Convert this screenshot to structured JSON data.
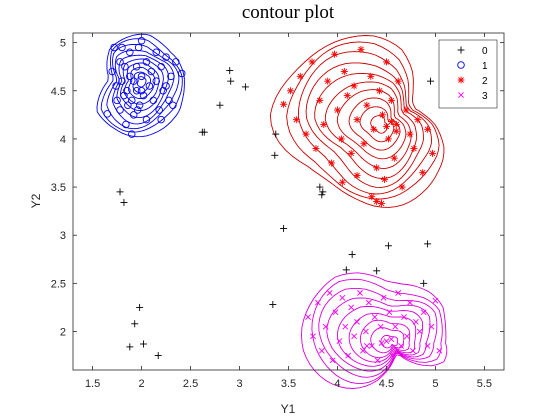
{
  "chart_data": {
    "type": "scatter",
    "title": "contour plot",
    "xlabel": "Y1",
    "ylabel": "Y2",
    "xlim": [
      1.3,
      5.7
    ],
    "ylim": [
      1.6,
      5.1
    ],
    "xticks": [
      1.5,
      2,
      2.5,
      3,
      3.5,
      4,
      4.5,
      5,
      5.5
    ],
    "yticks": [
      2,
      2.5,
      3,
      3.5,
      4,
      4.5,
      5
    ],
    "xtick_labels": [
      "1.5",
      "2",
      "2.5",
      "3",
      "3.5",
      "4",
      "4.5",
      "5",
      "5.5"
    ],
    "ytick_labels": [
      "2",
      "2.5",
      "3",
      "3.5",
      "4",
      "4.5",
      "5"
    ],
    "grid": false,
    "legend_position": "top-right",
    "series": [
      {
        "name": "0",
        "marker": "plus",
        "color": "#000000",
        "x": [
          1.78,
          1.82,
          1.88,
          1.93,
          1.98,
          2.02,
          2.17,
          2.62,
          2.64,
          2.8,
          2.9,
          2.91,
          3.06,
          3.34,
          3.36,
          3.37,
          3.45,
          3.82,
          3.84,
          3.85,
          4.09,
          4.15,
          4.4,
          4.52,
          4.88,
          4.92,
          4.95
        ],
        "y": [
          3.45,
          3.34,
          1.84,
          2.08,
          2.25,
          1.87,
          1.75,
          4.07,
          4.07,
          4.35,
          4.71,
          4.6,
          4.54,
          2.28,
          3.83,
          4.05,
          3.07,
          3.5,
          3.42,
          3.45,
          2.64,
          2.8,
          2.63,
          2.89,
          2.5,
          2.91,
          4.6
        ]
      },
      {
        "name": "1",
        "marker": "circle",
        "color": "#0000ff",
        "x": [
          1.65,
          1.7,
          1.72,
          1.74,
          1.75,
          1.78,
          1.78,
          1.8,
          1.8,
          1.82,
          1.83,
          1.85,
          1.86,
          1.88,
          1.88,
          1.9,
          1.92,
          1.92,
          1.95,
          1.95,
          1.97,
          1.98,
          2.0,
          2.0,
          2.02,
          2.05,
          2.05,
          2.08,
          2.1,
          2.12,
          2.15,
          2.15,
          2.18,
          2.2,
          2.22,
          2.25,
          2.25,
          2.28,
          2.3,
          2.35,
          1.84,
          1.9,
          1.96,
          2.0,
          2.2,
          2.32,
          2.41
        ],
        "y": [
          4.26,
          4.7,
          4.95,
          4.55,
          4.4,
          4.8,
          4.3,
          4.6,
          4.95,
          4.45,
          4.75,
          4.5,
          4.35,
          4.65,
          4.9,
          4.4,
          4.6,
          4.25,
          4.75,
          4.5,
          4.95,
          4.35,
          4.65,
          5.02,
          4.45,
          4.8,
          4.2,
          4.55,
          4.7,
          4.4,
          4.9,
          4.6,
          4.3,
          4.75,
          4.5,
          4.85,
          4.55,
          4.4,
          4.65,
          4.8,
          4.15,
          4.05,
          4.3,
          4.5,
          4.2,
          4.35,
          4.68
        ]
      },
      {
        "name": "2",
        "marker": "asterisk",
        "color": "#ff0000",
        "x": [
          3.45,
          3.52,
          3.58,
          3.62,
          3.68,
          3.74,
          3.78,
          3.82,
          3.86,
          3.9,
          3.94,
          3.97,
          4.0,
          4.04,
          4.07,
          4.1,
          4.14,
          4.17,
          4.2,
          4.24,
          4.27,
          4.3,
          4.34,
          4.37,
          4.4,
          4.43,
          4.46,
          4.48,
          4.5,
          4.52,
          4.55,
          4.58,
          4.6,
          4.62,
          4.66,
          4.7,
          4.74,
          4.78,
          4.82,
          4.87,
          4.92,
          4.97,
          4.05,
          4.2,
          4.35,
          4.4,
          4.45,
          4.5,
          4.55,
          4.6
        ],
        "y": [
          4.36,
          4.5,
          4.2,
          4.65,
          4.05,
          4.8,
          3.9,
          4.4,
          4.15,
          4.6,
          3.75,
          4.88,
          4.3,
          4.0,
          4.7,
          4.45,
          3.85,
          4.55,
          4.2,
          4.93,
          3.95,
          4.35,
          4.65,
          4.1,
          3.7,
          4.5,
          4.25,
          3.58,
          4.8,
          4.0,
          4.4,
          3.8,
          4.15,
          4.6,
          3.5,
          4.3,
          4.05,
          3.9,
          4.2,
          3.65,
          4.1,
          3.85,
          3.55,
          3.62,
          3.4,
          3.35,
          3.33,
          4.13,
          4.18,
          4.08
        ]
      },
      {
        "name": "3",
        "marker": "cross",
        "color": "#ff00ff",
        "x": [
          3.7,
          3.75,
          3.8,
          3.84,
          3.88,
          3.92,
          3.95,
          3.98,
          4.02,
          4.05,
          4.08,
          4.11,
          4.14,
          4.17,
          4.2,
          4.23,
          4.26,
          4.29,
          4.32,
          4.35,
          4.38,
          4.41,
          4.44,
          4.47,
          4.5,
          4.53,
          4.56,
          4.59,
          4.62,
          4.65,
          4.68,
          4.71,
          4.74,
          4.77,
          4.8,
          4.84,
          4.88,
          4.92,
          4.96,
          5.0,
          5.04,
          4.3,
          4.45,
          4.55
        ],
        "y": [
          2.15,
          1.95,
          2.3,
          1.8,
          2.05,
          2.4,
          1.7,
          2.2,
          1.9,
          2.35,
          2.05,
          1.75,
          2.25,
          1.95,
          2.1,
          2.4,
          1.8,
          2.0,
          2.3,
          1.85,
          2.15,
          1.7,
          2.05,
          2.35,
          1.9,
          2.2,
          1.75,
          2.05,
          2.4,
          1.85,
          2.15,
          1.95,
          2.3,
          1.8,
          2.1,
          2.0,
          2.2,
          1.85,
          2.05,
          2.32,
          1.8,
          1.85,
          1.88,
          1.92
        ]
      }
    ],
    "contours": [
      {
        "series": "1",
        "color": "#0000ff",
        "center": [
          2.0,
          4.6
        ],
        "levels": 10
      },
      {
        "series": "2",
        "color": "#cc0000",
        "center": [
          4.45,
          4.15
        ],
        "levels": 10
      },
      {
        "series": "3",
        "color": "#dd00dd",
        "center": [
          4.55,
          1.88
        ],
        "levels": 9
      }
    ]
  }
}
